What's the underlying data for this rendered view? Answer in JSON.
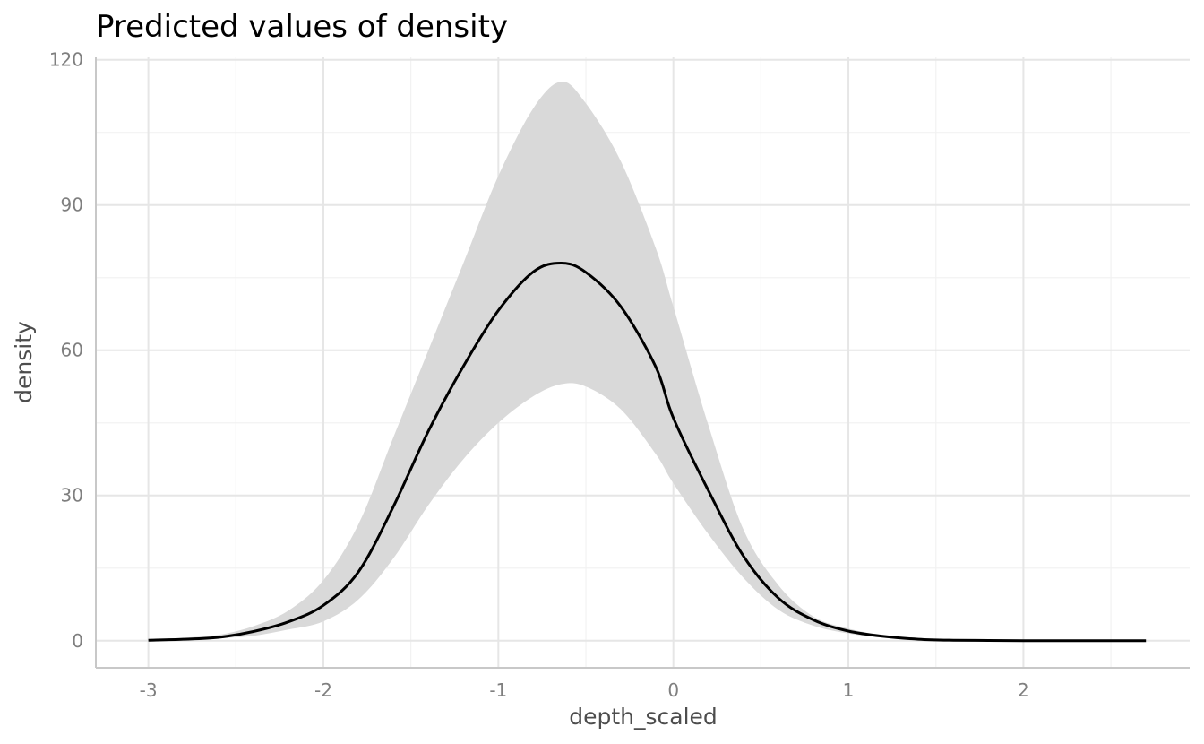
{
  "chart_data": {
    "type": "line",
    "title": "Predicted values of density",
    "xlabel": "depth_scaled",
    "ylabel": "density",
    "xlim": [
      -3.3,
      2.95
    ],
    "ylim": [
      -5.6,
      120.5
    ],
    "x_ticks": [
      -3,
      -2,
      -1,
      0,
      1,
      2
    ],
    "x_tick_labels": [
      "-3",
      "-2",
      "-1",
      "0",
      "1",
      "2"
    ],
    "y_ticks": [
      0,
      30,
      60,
      90,
      120
    ],
    "y_tick_labels": [
      "0",
      "30",
      "60",
      "90",
      "120"
    ],
    "grid": true,
    "legend": "none",
    "series": [
      {
        "type": "line",
        "color": "#000000",
        "x": [
          -3.0,
          -2.8,
          -2.6,
          -2.4,
          -2.2,
          -2.0,
          -1.8,
          -1.6,
          -1.4,
          -1.2,
          -1.0,
          -0.8,
          -0.64,
          -0.5,
          -0.3,
          -0.1,
          0.0,
          0.2,
          0.4,
          0.6,
          0.8,
          1.0,
          1.2,
          1.4,
          1.6,
          1.8,
          2.0,
          2.2,
          2.4,
          2.7
        ],
        "y": [
          0.1,
          0.3,
          0.7,
          1.9,
          3.9,
          7.3,
          14.2,
          27.7,
          43.3,
          56.7,
          68.2,
          76.2,
          78.0,
          76.1,
          69.0,
          56.5,
          46.0,
          31.0,
          17.5,
          8.8,
          4.3,
          2.0,
          0.9,
          0.3,
          0.1,
          0.05,
          0.0,
          0.0,
          0.0,
          0.0
        ]
      }
    ],
    "ribbon": {
      "color": "#d9d9d9",
      "x": [
        -3.0,
        -2.8,
        -2.6,
        -2.4,
        -2.2,
        -2.0,
        -1.8,
        -1.6,
        -1.4,
        -1.2,
        -1.0,
        -0.8,
        -0.64,
        -0.5,
        -0.3,
        -0.1,
        0.0,
        0.2,
        0.4,
        0.6,
        0.8,
        1.0,
        1.2,
        1.4,
        1.6,
        1.8,
        2.0,
        2.2,
        2.4,
        2.7
      ],
      "lower": [
        0.0,
        0.2,
        0.5,
        1.0,
        2.3,
        4.0,
        8.5,
        17.0,
        28.0,
        37.5,
        45.0,
        50.5,
        53.0,
        52.5,
        47.8,
        38.5,
        32.5,
        22.0,
        13.0,
        6.4,
        3.1,
        1.5,
        0.6,
        0.2,
        0.05,
        0.0,
        0.0,
        0.0,
        0.0,
        0.0
      ],
      "upper": [
        0.2,
        0.6,
        1.2,
        3.0,
        6.2,
        12.5,
        24.0,
        42.0,
        60.0,
        78.0,
        96.0,
        110.0,
        115.5,
        111.0,
        99.0,
        81.0,
        69.0,
        44.5,
        23.0,
        11.5,
        5.0,
        2.5,
        1.1,
        0.5,
        0.2,
        0.05,
        0.0,
        0.0,
        0.0,
        0.0
      ]
    }
  }
}
